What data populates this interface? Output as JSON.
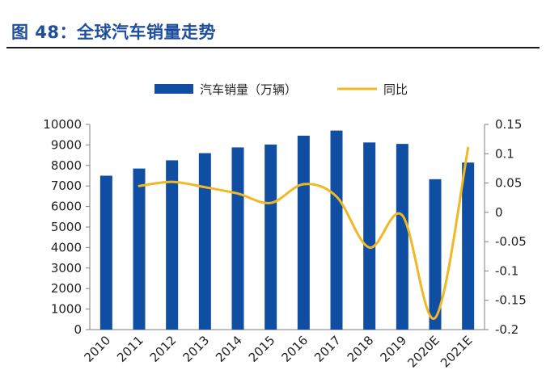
{
  "header": {
    "title": "图 48：全球汽车销量走势"
  },
  "colors": {
    "title": "#1f4e9e",
    "bar": "#0f4ea3",
    "line": "#f2b824",
    "axis": "#7f7f7f",
    "text": "#222222"
  },
  "chart_data": {
    "type": "bar",
    "categories": [
      "2010",
      "2011",
      "2012",
      "2013",
      "2014",
      "2015",
      "2016",
      "2017",
      "2018",
      "2019",
      "2020E",
      "2021E"
    ],
    "series": [
      {
        "name": "汽车销量（万辆）",
        "type": "bar",
        "axis": "left",
        "values": [
          7500,
          7850,
          8250,
          8600,
          8880,
          9020,
          9450,
          9700,
          9120,
          9050,
          7330,
          8140
        ]
      },
      {
        "name": "同比",
        "type": "line",
        "axis": "right",
        "values": [
          null,
          0.045,
          0.052,
          0.043,
          0.032,
          0.016,
          0.048,
          0.027,
          -0.06,
          -0.005,
          -0.18,
          0.11
        ]
      }
    ],
    "y_left": {
      "min": 0,
      "max": 10000,
      "ticks": [
        "0",
        "1000",
        "2000",
        "3000",
        "4000",
        "5000",
        "6000",
        "7000",
        "8000",
        "9000",
        "10000"
      ]
    },
    "y_right": {
      "min": -0.2,
      "max": 0.15,
      "ticks": [
        "-0.2",
        "-0.15",
        "-0.1",
        "-0.05",
        "0",
        "0.05",
        "0.1",
        "0.15"
      ]
    },
    "legend_position": "top-center",
    "grid": false
  }
}
